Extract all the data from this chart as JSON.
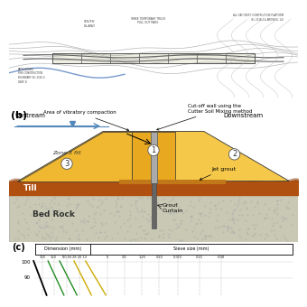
{
  "map_bg": "#e8e8dc",
  "map_line": "#888888",
  "map_line_dark": "#555555",
  "white": "#ffffff",
  "dike_light_yellow": "#f5c84a",
  "dike_mid_yellow": "#e8a820",
  "dike_dark_orange": "#d4870a",
  "till_color": "#b05010",
  "till_dark": "#8a3c08",
  "bedrock_color": "#c8c8b4",
  "bedrock_dot": "#b0b09a",
  "cutoff_color": "#aaaaaa",
  "cutoff_edge": "#555555",
  "grout_color": "#666666",
  "jet_grout_color": "#c07818",
  "water_color": "#5588bb",
  "water_arrow": "#5588bb",
  "label_b": "(b)",
  "label_c": "(c)",
  "upstream_text": "Upstream",
  "downstream_text": "Downstream",
  "zone1_text": "1",
  "zone2_text": "2",
  "zone3_text": "3",
  "zone3fill_text": "Zone 3 fill",
  "till_text": "Till",
  "bedrock_text": "Bed Rock",
  "jetgrout_text": "Jet grout",
  "groutcurtain_text": "Grout\nCurtain",
  "vibcomp_text": "Area of vibratory compaction",
  "cutoff_text": "Cut-off wall using the\nCutter Soil Mixing method",
  "dim_text": "Dimension (mm)",
  "sieve_text": "Sieve size (mm)",
  "sieve_labels": [
    "300",
    "150",
    "80 56",
    "28 20 14",
    "5",
    "2.5",
    "1.25",
    "0.63",
    "0.315",
    "0.15",
    "0.08"
  ],
  "black": "#000000",
  "dark_gray": "#333333",
  "green_line": "#228B22",
  "yellow_line": "#ccaa00"
}
